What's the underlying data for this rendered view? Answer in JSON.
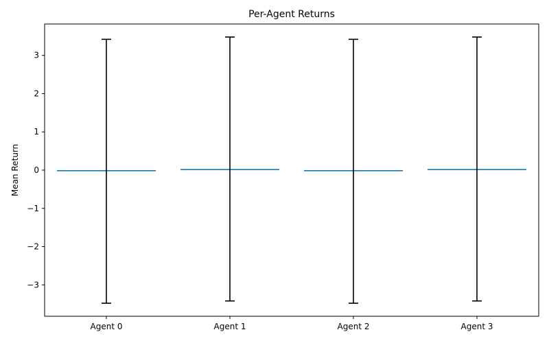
{
  "chart_data": {
    "type": "bar",
    "title": "Per-Agent Returns",
    "xlabel": "",
    "ylabel": "Mean Return",
    "categories": [
      "Agent 0",
      "Agent 1",
      "Agent 2",
      "Agent 3"
    ],
    "values": [
      -0.03,
      0.03,
      -0.03,
      0.03
    ],
    "error": [
      3.45,
      3.45,
      3.45,
      3.45
    ],
    "ylim": [
      -3.82,
      3.82
    ],
    "yticks": [
      -3,
      -2,
      -1,
      0,
      1,
      2,
      3
    ],
    "ytick_labels": [
      "−3",
      "−2",
      "−1",
      "0",
      "1",
      "2",
      "3"
    ],
    "grid": false,
    "colors": {
      "bar": "#1f77b4",
      "errorbar": "#000000"
    }
  }
}
